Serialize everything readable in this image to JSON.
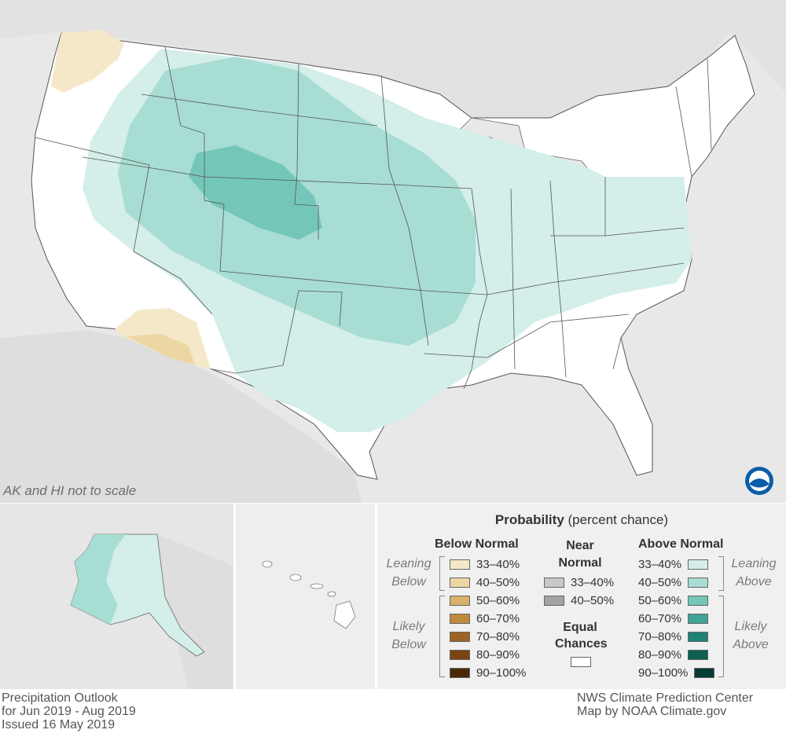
{
  "map": {
    "not_to_scale_note": "AK and HI not to scale",
    "logo": "noaa-logo"
  },
  "legend": {
    "title_bold": "Probability",
    "title_rest": " (percent chance)",
    "below": {
      "header": "Below Normal",
      "leaning_label": [
        "Leaning",
        "Below"
      ],
      "likely_label": [
        "Likely",
        "Below"
      ],
      "items": [
        {
          "range": "33–40%",
          "color": "#f5e8c8"
        },
        {
          "range": "40–50%",
          "color": "#ecd7a4"
        },
        {
          "range": "50–60%",
          "color": "#d8b06a"
        },
        {
          "range": "60–70%",
          "color": "#c08a3e"
        },
        {
          "range": "70–80%",
          "color": "#9c6325"
        },
        {
          "range": "80–90%",
          "color": "#7a4512"
        },
        {
          "range": "90–100%",
          "color": "#4d2806"
        }
      ]
    },
    "near": {
      "header": [
        "Near",
        "Normal"
      ],
      "items": [
        {
          "range": "33–40%",
          "color": "#c8c8c8"
        },
        {
          "range": "40–50%",
          "color": "#a3a3a3"
        }
      ]
    },
    "equal": {
      "header": [
        "Equal",
        "Chances"
      ],
      "color": "#ffffff"
    },
    "above": {
      "header": "Above Normal",
      "leaning_label": [
        "Leaning",
        "Above"
      ],
      "likely_label": [
        "Likely",
        "Above"
      ],
      "items": [
        {
          "range": "33–40%",
          "color": "#d4eee9"
        },
        {
          "range": "40–50%",
          "color": "#a8ddd3"
        },
        {
          "range": "50–60%",
          "color": "#74c7b8"
        },
        {
          "range": "60–70%",
          "color": "#3ea597"
        },
        {
          "range": "70–80%",
          "color": "#1f8275"
        },
        {
          "range": "80–90%",
          "color": "#0e5f54"
        },
        {
          "range": "90–100%",
          "color": "#053a33"
        }
      ]
    }
  },
  "footer": {
    "left": [
      "Precipitation Outlook",
      "for Jun 2019 - Aug 2019",
      "Issued 16 May 2019"
    ],
    "right": [
      "NWS Climate Prediction Center",
      "Map by NOAA Climate.gov"
    ]
  }
}
